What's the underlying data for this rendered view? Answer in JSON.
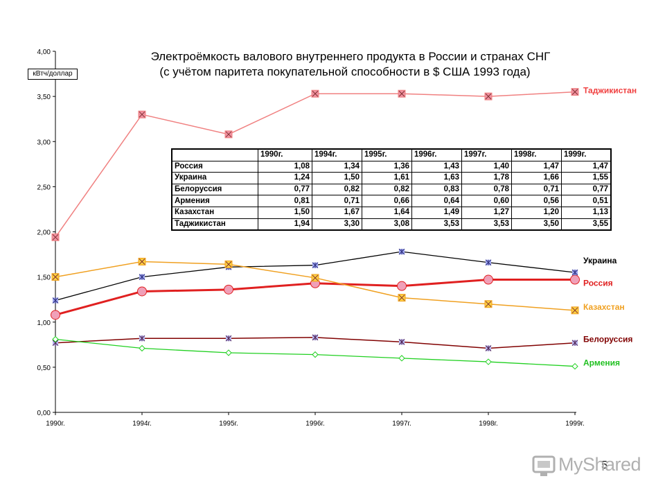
{
  "page_number": "5",
  "watermark_text": "MyShared",
  "chart_data": {
    "type": "line",
    "title_line1": "Электроёмкость валового внутреннего продукта в России и странах СНГ",
    "title_line2": "(с учётом паритета покупательной способности в $ США 1993 года)",
    "unit_label": "кВтч/доллар",
    "categories": [
      "1990г.",
      "1994г.",
      "1995г.",
      "1996г.",
      "1997г.",
      "1998г.",
      "1999г."
    ],
    "ylim": [
      0,
      4
    ],
    "yticks": [
      "0,00",
      "0,50",
      "1,00",
      "1,50",
      "2,00",
      "2,50",
      "3,00",
      "3,50",
      "4,00"
    ],
    "grid": false,
    "series": [
      {
        "name": "Россия",
        "values": [
          1.08,
          1.34,
          1.36,
          1.43,
          1.4,
          1.47,
          1.47
        ],
        "color": "#e02020",
        "label_color": "#e02020",
        "marker": "circle",
        "marker_fill": "#f0a0b8",
        "width": 3
      },
      {
        "name": "Украина",
        "values": [
          1.24,
          1.5,
          1.61,
          1.63,
          1.78,
          1.66,
          1.55
        ],
        "color": "#000000",
        "label_color": "#000000",
        "marker": "x",
        "marker_fill": "#a0a8f0",
        "width": 1.3
      },
      {
        "name": "Белоруссия",
        "values": [
          0.77,
          0.82,
          0.82,
          0.83,
          0.78,
          0.71,
          0.77
        ],
        "color": "#800000",
        "label_color": "#800000",
        "marker": "x",
        "marker_fill": "#b8b8f0",
        "width": 1.5
      },
      {
        "name": "Армения",
        "values": [
          0.81,
          0.71,
          0.66,
          0.64,
          0.6,
          0.56,
          0.51
        ],
        "color": "#20d020",
        "label_color": "#20c020",
        "marker": "diamond",
        "marker_fill": "#ffffff",
        "width": 1.3
      },
      {
        "name": "Казахстан",
        "values": [
          1.5,
          1.67,
          1.64,
          1.49,
          1.27,
          1.2,
          1.13
        ],
        "color": "#f0a020",
        "label_color": "#f0a020",
        "marker": "square",
        "marker_fill": "#ffd040",
        "width": 1.5
      },
      {
        "name": "Таджикистан",
        "values": [
          1.94,
          3.3,
          3.08,
          3.53,
          3.53,
          3.5,
          3.55
        ],
        "color": "#f08080",
        "label_color": "#f04040",
        "marker": "square",
        "marker_fill": "#f090a0",
        "width": 1.5
      }
    ],
    "table": {
      "headers": [
        "",
        "1990г.",
        "1994г.",
        "1995г.",
        "1996г.",
        "1997г.",
        "1998г.",
        "1999г."
      ],
      "rows": [
        [
          "Россия",
          "1,08",
          "1,34",
          "1,36",
          "1,43",
          "1,40",
          "1,47",
          "1,47"
        ],
        [
          "Украина",
          "1,24",
          "1,50",
          "1,61",
          "1,63",
          "1,78",
          "1,66",
          "1,55"
        ],
        [
          "Белоруссия",
          "0,77",
          "0,82",
          "0,82",
          "0,83",
          "0,78",
          "0,71",
          "0,77"
        ],
        [
          "Армения",
          "0,81",
          "0,71",
          "0,66",
          "0,64",
          "0,60",
          "0,56",
          "0,51"
        ],
        [
          "Казахстан",
          "1,50",
          "1,67",
          "1,64",
          "1,49",
          "1,27",
          "1,20",
          "1,13"
        ],
        [
          "Таджикистан",
          "1,94",
          "3,30",
          "3,08",
          "3,53",
          "3,53",
          "3,50",
          "3,55"
        ]
      ]
    }
  }
}
